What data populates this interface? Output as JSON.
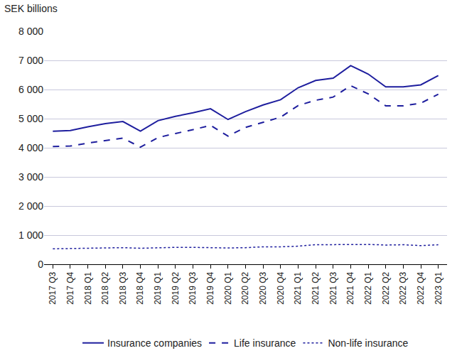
{
  "chart_data": {
    "type": "line",
    "y_label": "SEK billions",
    "categories": [
      "2017 Q3",
      "2017 Q4",
      "2018 Q1",
      "2018 Q2",
      "2018 Q3",
      "2018 Q4",
      "2019 Q1",
      "2019 Q2",
      "2019 Q3",
      "2019 Q4",
      "2020 Q1",
      "2020 Q2",
      "2020 Q3",
      "2020 Q4",
      "2021 Q1",
      "2021 Q2",
      "2021 Q3",
      "2021 Q4",
      "2022 Q1",
      "2022 Q2",
      "2022 Q3",
      "2022 Q4",
      "2023 Q1"
    ],
    "series": [
      {
        "name": "Insurance companies",
        "color": "#1e1e9e",
        "line_style": "solid",
        "values": [
          4570,
          4590,
          4720,
          4830,
          4900,
          4570,
          4930,
          5080,
          5200,
          5340,
          4970,
          5240,
          5470,
          5650,
          6060,
          6310,
          6390,
          6820,
          6530,
          6090,
          6090,
          6160,
          6480
        ]
      },
      {
        "name": "Life insurance",
        "color": "#1e1e9e",
        "line_style": "dash",
        "values": [
          4040,
          4060,
          4160,
          4240,
          4330,
          4020,
          4350,
          4490,
          4620,
          4770,
          4400,
          4700,
          4870,
          5050,
          5450,
          5630,
          5740,
          6130,
          5850,
          5440,
          5440,
          5530,
          5840
        ]
      },
      {
        "name": "Non-life insurance",
        "color": "#1e1e9e",
        "line_style": "dot",
        "values": [
          530,
          540,
          550,
          570,
          570,
          550,
          570,
          580,
          580,
          570,
          560,
          570,
          600,
          600,
          620,
          670,
          670,
          680,
          680,
          660,
          670,
          640,
          670
        ]
      }
    ],
    "ylim": [
      0,
      8000
    ],
    "yticks": [
      0,
      {
        "value": 1000,
        "label": "1 000"
      },
      {
        "value": 2000,
        "label": "2 000"
      },
      {
        "value": 3000,
        "label": "3 000"
      },
      {
        "value": 4000,
        "label": "4 000"
      },
      {
        "value": 5000,
        "label": "5 000"
      },
      {
        "value": 6000,
        "label": "6 000"
      },
      {
        "value": 7000,
        "label": "7 000"
      },
      {
        "value": 8000,
        "label": "8 000"
      }
    ],
    "grid": true,
    "legend": "bottom"
  }
}
